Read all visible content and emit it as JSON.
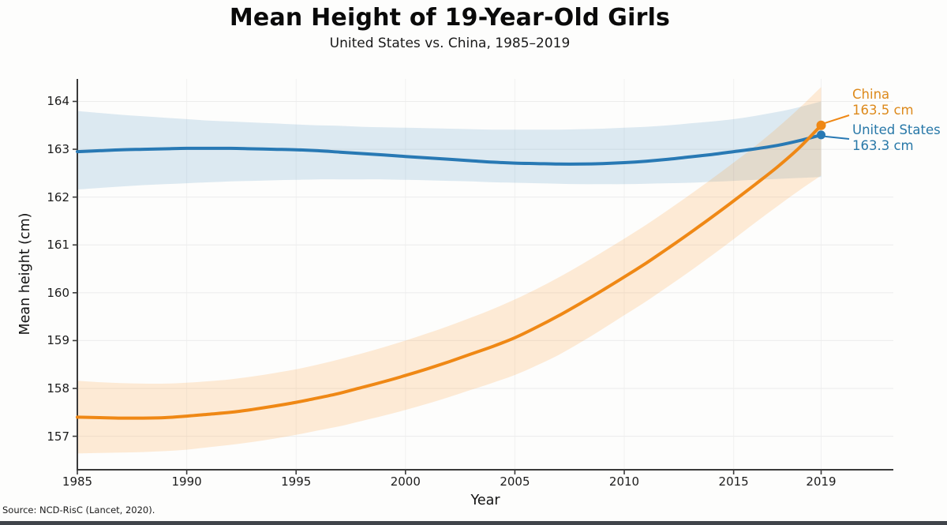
{
  "header": {
    "title": "Mean Height of 19-Year-Old Girls",
    "subtitle": "United States vs. China, 1985–2019"
  },
  "source": "Source: NCD-RisC (Lancet, 2020).",
  "colors": {
    "us_line": "#2879b4",
    "us_band": "rgba(31,119,180,0.15)",
    "us_text": "#2878a8",
    "china_line": "#ef8815",
    "china_band": "rgba(255,150,40,0.18)",
    "china_text": "#dd8a1c",
    "gridline": "#ececec",
    "vgridline": "#f1f1f1",
    "spine": "#3a3a3a",
    "background": "#fdfdfc"
  },
  "chart_data": {
    "type": "line",
    "title": "Mean Height of 19-Year-Old Girls",
    "subtitle": "United States vs. China, 1985–2019",
    "xlabel": "Year",
    "ylabel": "Mean height (cm)",
    "grid": true,
    "legend_position": "end-of-line annotations",
    "xlim": [
      1985,
      2022.3
    ],
    "ylim": [
      156.3,
      164.47
    ],
    "xticks": [
      1985,
      1990,
      1995,
      2000,
      2005,
      2010,
      2015,
      2019
    ],
    "yticks": [
      157,
      158,
      159,
      160,
      161,
      162,
      163,
      164
    ],
    "x": [
      1985,
      1986,
      1987,
      1988,
      1989,
      1990,
      1991,
      1992,
      1993,
      1994,
      1995,
      1996,
      1997,
      1998,
      1999,
      2000,
      2001,
      2002,
      2003,
      2004,
      2005,
      2006,
      2007,
      2008,
      2009,
      2010,
      2011,
      2012,
      2013,
      2014,
      2015,
      2016,
      2017,
      2018,
      2019
    ],
    "series": [
      {
        "name": "United States",
        "end_label": {
          "name": "United States",
          "value": "163.3 cm"
        },
        "values": [
          162.95,
          162.97,
          162.99,
          163.0,
          163.01,
          163.02,
          163.02,
          163.02,
          163.01,
          163.0,
          162.99,
          162.97,
          162.94,
          162.91,
          162.88,
          162.85,
          162.82,
          162.79,
          162.76,
          162.73,
          162.71,
          162.7,
          162.69,
          162.69,
          162.7,
          162.72,
          162.75,
          162.79,
          162.84,
          162.89,
          162.95,
          163.01,
          163.08,
          163.18,
          163.3
        ],
        "band_upper": [
          163.8,
          163.76,
          163.72,
          163.69,
          163.66,
          163.63,
          163.6,
          163.58,
          163.56,
          163.54,
          163.52,
          163.5,
          163.49,
          163.47,
          163.46,
          163.45,
          163.44,
          163.43,
          163.42,
          163.41,
          163.41,
          163.41,
          163.41,
          163.42,
          163.43,
          163.45,
          163.47,
          163.5,
          163.54,
          163.58,
          163.63,
          163.7,
          163.78,
          163.88,
          164.0
        ],
        "band_lower": [
          162.16,
          162.19,
          162.22,
          162.25,
          162.27,
          162.29,
          162.31,
          162.33,
          162.34,
          162.35,
          162.36,
          162.37,
          162.37,
          162.37,
          162.37,
          162.36,
          162.35,
          162.34,
          162.33,
          162.31,
          162.3,
          162.29,
          162.28,
          162.27,
          162.27,
          162.27,
          162.28,
          162.29,
          162.3,
          162.32,
          162.34,
          162.36,
          162.38,
          162.4,
          162.42
        ]
      },
      {
        "name": "China",
        "end_label": {
          "name": "China",
          "value": "163.5 cm"
        },
        "values": [
          157.4,
          157.39,
          157.38,
          157.38,
          157.39,
          157.42,
          157.46,
          157.5,
          157.56,
          157.63,
          157.71,
          157.8,
          157.9,
          158.02,
          158.14,
          158.27,
          158.41,
          158.56,
          158.72,
          158.88,
          159.06,
          159.28,
          159.52,
          159.78,
          160.05,
          160.33,
          160.62,
          160.93,
          161.25,
          161.58,
          161.92,
          162.27,
          162.63,
          163.03,
          163.5
        ],
        "band_upper": [
          158.16,
          158.13,
          158.11,
          158.1,
          158.1,
          158.12,
          158.15,
          158.19,
          158.25,
          158.32,
          158.4,
          158.5,
          158.61,
          158.73,
          158.86,
          159.0,
          159.15,
          159.31,
          159.48,
          159.66,
          159.86,
          160.08,
          160.32,
          160.58,
          160.85,
          161.13,
          161.42,
          161.73,
          162.05,
          162.38,
          162.72,
          163.07,
          163.45,
          163.86,
          164.3
        ],
        "band_lower": [
          156.64,
          156.65,
          156.66,
          156.67,
          156.69,
          156.72,
          156.77,
          156.82,
          156.88,
          156.95,
          157.03,
          157.12,
          157.21,
          157.32,
          157.43,
          157.55,
          157.68,
          157.82,
          157.97,
          158.12,
          158.28,
          158.48,
          158.7,
          158.96,
          159.24,
          159.53,
          159.82,
          160.13,
          160.45,
          160.78,
          161.12,
          161.47,
          161.81,
          162.14,
          162.45
        ]
      }
    ]
  }
}
